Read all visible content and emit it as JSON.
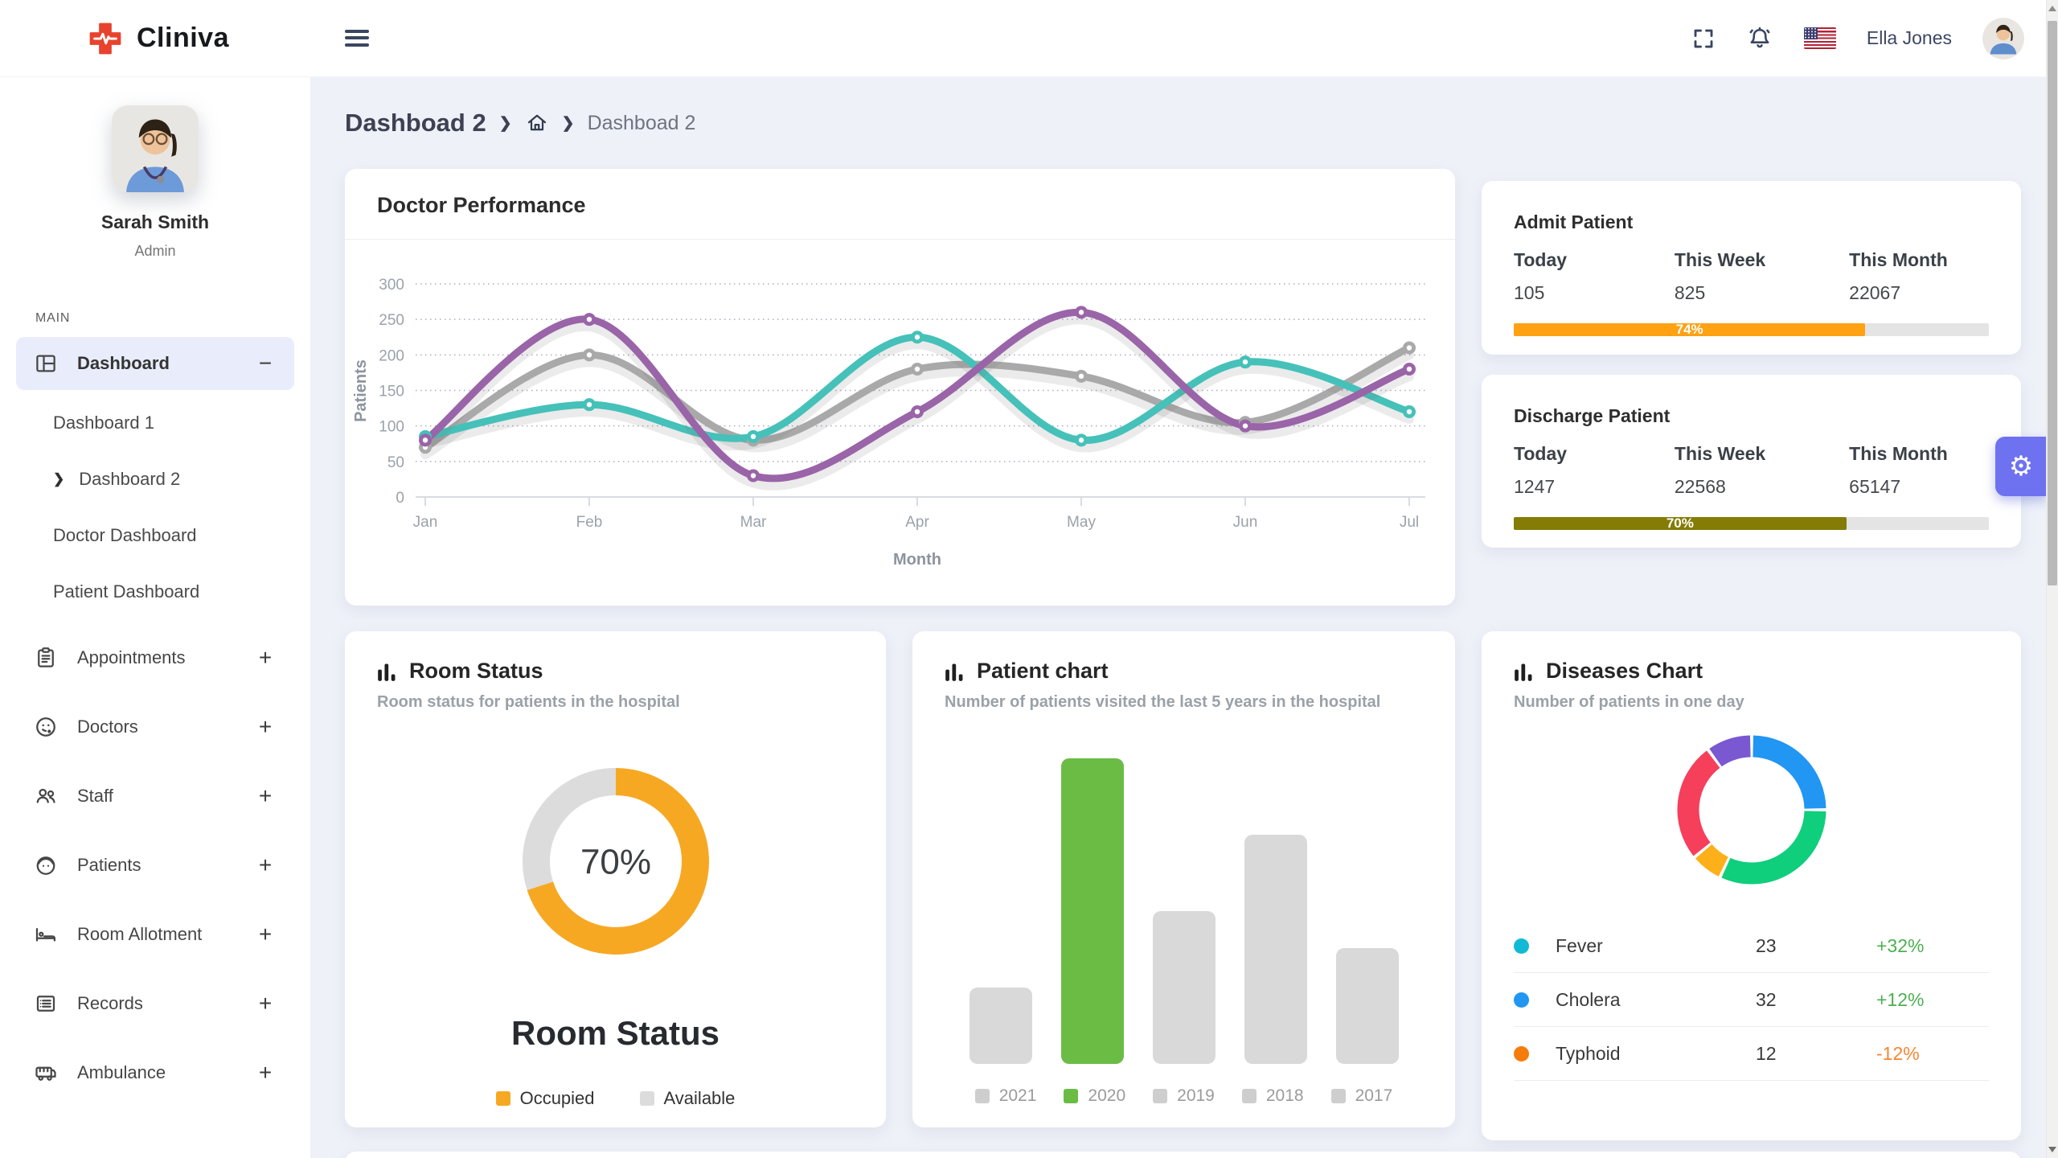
{
  "app": {
    "name": "Cliniva"
  },
  "topbar": {
    "user_name": "Ella Jones",
    "hamburger_icon": "hamburger-icon",
    "fullscreen_icon": "fullscreen-icon",
    "notifications_icon": "bell-icon",
    "language_icon": "us-flag-icon",
    "profile_avatar": "user-avatar"
  },
  "sidebar": {
    "profile": {
      "name": "Sarah Smith",
      "role": "Admin",
      "photo": "profile-photo"
    },
    "section_label": "MAIN",
    "items": [
      {
        "label": "Dashboard",
        "icon": "dashboard-icon",
        "active": true,
        "toggle_glyph": "−",
        "children": [
          {
            "label": "Dashboard 1",
            "active": false
          },
          {
            "label": "Dashboard 2",
            "active": true
          },
          {
            "label": "Doctor Dashboard",
            "active": false
          },
          {
            "label": "Patient Dashboard",
            "active": false
          }
        ]
      },
      {
        "label": "Appointments",
        "icon": "clipboard-icon",
        "active": false,
        "toggle_glyph": "+"
      },
      {
        "label": "Doctors",
        "icon": "doctor-icon",
        "active": false,
        "toggle_glyph": "+"
      },
      {
        "label": "Staff",
        "icon": "staff-icon",
        "active": false,
        "toggle_glyph": "+"
      },
      {
        "label": "Patients",
        "icon": "patient-icon",
        "active": false,
        "toggle_glyph": "+"
      },
      {
        "label": "Room Allotment",
        "icon": "bed-icon",
        "active": false,
        "toggle_glyph": "+"
      },
      {
        "label": "Records",
        "icon": "records-icon",
        "active": false,
        "toggle_glyph": "+"
      },
      {
        "label": "Ambulance",
        "icon": "ambulance-icon",
        "active": false,
        "toggle_glyph": "+"
      }
    ]
  },
  "breadcrumb": {
    "title": "Dashboad 2",
    "home_icon": "home-icon",
    "current": "Dashboad 2"
  },
  "cards": {
    "doctor_performance": {
      "title": "Doctor Performance"
    },
    "admit_patient": {
      "title": "Admit Patient",
      "columns": [
        "Today",
        "This Week",
        "This Month"
      ],
      "values": [
        "105",
        "825",
        "22067"
      ],
      "progress": {
        "percent": 74,
        "label": "74%",
        "bar_color": "#ffa113",
        "track_color": "#e4e4e4"
      }
    },
    "discharge_patient": {
      "title": "Discharge Patient",
      "columns": [
        "Today",
        "This Week",
        "This Month"
      ],
      "values": [
        "1247",
        "22568",
        "65147"
      ],
      "progress": {
        "percent": 70,
        "label": "70%",
        "bar_color": "#847c04",
        "track_color": "#e4e4e4"
      }
    },
    "room_status": {
      "title": "Room Status",
      "subtitle": "Room status for patients in the hospital",
      "header_icon": "bar-chart-icon",
      "center_label": "70%",
      "big_title": "Room Status",
      "legend": [
        {
          "label": "Occupied",
          "color": "#f7a823"
        },
        {
          "label": "Available",
          "color": "#dcdcdc"
        }
      ]
    },
    "patient_chart": {
      "title": "Patient chart",
      "subtitle": "Number of patients visited the last 5 years in the hospital",
      "header_icon": "bar-chart-icon"
    },
    "diseases_chart": {
      "title": "Diseases Chart",
      "subtitle": "Number of patients in one day",
      "header_icon": "bar-chart-icon",
      "rows": [
        {
          "dot_color": "#12b9d4",
          "label": "Fever",
          "value": "23",
          "change": "+32%",
          "change_color": "#4caf50"
        },
        {
          "dot_color": "#2196f3",
          "label": "Cholera",
          "value": "32",
          "change": "+12%",
          "change_color": "#4caf50"
        },
        {
          "dot_color": "#f57c0c",
          "label": "Typhoid",
          "value": "12",
          "change": "-12%",
          "change_color": "#f58634"
        }
      ]
    }
  },
  "settings": {
    "icon": "gear-icon",
    "glyph": "⚙"
  },
  "chart_data": [
    {
      "type": "line",
      "title": "Doctor Performance",
      "x": [
        "Jan",
        "Feb",
        "Mar",
        "Apr",
        "May",
        "Jun",
        "Jul"
      ],
      "xlabel": "Month",
      "ylabel": "Patients",
      "ylim": [
        0,
        300
      ],
      "yticks": [
        0,
        50,
        100,
        150,
        200,
        250,
        300
      ],
      "grid": true,
      "legend_position": "none",
      "series": [
        {
          "name": "series-gray",
          "color": "#a9a9a9",
          "values": [
            70,
            200,
            80,
            180,
            170,
            105,
            210
          ]
        },
        {
          "name": "series-teal",
          "color": "#45c1b9",
          "values": [
            85,
            130,
            85,
            225,
            80,
            190,
            120
          ]
        },
        {
          "name": "series-purple",
          "color": "#9a64a8",
          "values": [
            80,
            250,
            30,
            120,
            260,
            100,
            180
          ]
        }
      ]
    },
    {
      "type": "pie",
      "variant": "donut",
      "title": "Room Status",
      "center_label": "70%",
      "slices": [
        {
          "label": "Occupied",
          "value": 70,
          "color": "#f7a823"
        },
        {
          "label": "Available",
          "value": 30,
          "color": "#dcdcdc"
        }
      ]
    },
    {
      "type": "bar",
      "title": "Patient chart",
      "categories": [
        "2021",
        "2020",
        "2019",
        "2018",
        "2017"
      ],
      "values": [
        25,
        100,
        50,
        75,
        38
      ],
      "colors": [
        "#d9d9d9",
        "#6abc45",
        "#d9d9d9",
        "#d9d9d9",
        "#d9d9d9"
      ],
      "ylim": [
        0,
        100
      ],
      "legend_position": "bottom"
    },
    {
      "type": "pie",
      "variant": "donut",
      "title": "Diseases Chart",
      "slices": [
        {
          "value": 25,
          "color": "#2196f3"
        },
        {
          "value": 32,
          "color": "#0fce7c"
        },
        {
          "value": 7,
          "color": "#fdb01a"
        },
        {
          "value": 26,
          "color": "#f53f5b"
        },
        {
          "value": 10,
          "color": "#7a58d1"
        }
      ]
    }
  ]
}
